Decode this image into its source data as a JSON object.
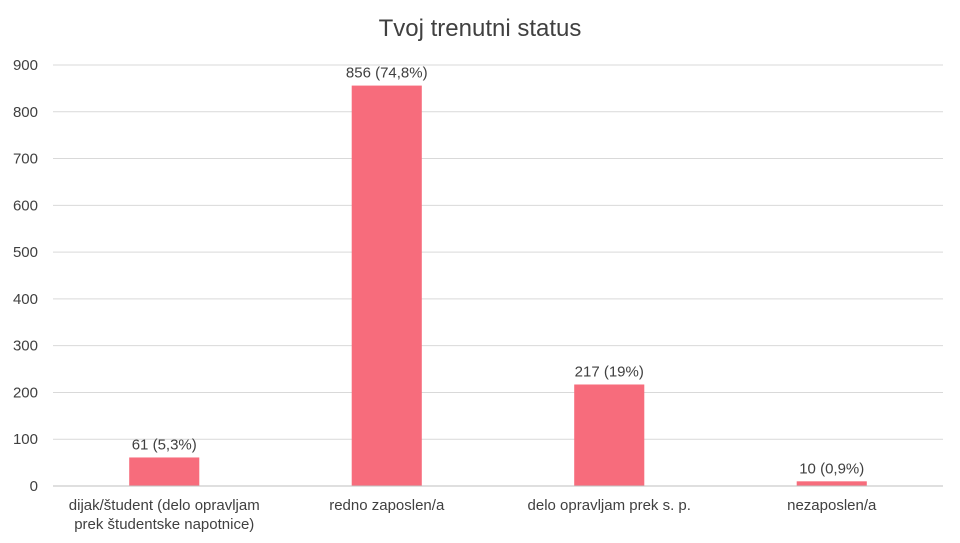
{
  "chart_data": {
    "type": "bar",
    "title": "Tvoj trenutni status",
    "xlabel": "",
    "ylabel": "",
    "ylim": [
      0,
      900
    ],
    "yticks": [
      0,
      100,
      200,
      300,
      400,
      500,
      600,
      700,
      800,
      900
    ],
    "grid": true,
    "bar_color": "#f76c7c",
    "categories": [
      [
        "dijak/študent (delo opravljam",
        "prek študentske napotnice)"
      ],
      [
        "redno zaposlen/a"
      ],
      [
        "delo opravljam prek s. p."
      ],
      [
        "nezaposlen/a"
      ]
    ],
    "values": [
      61,
      856,
      217,
      10
    ],
    "data_labels": [
      "61 (5,3%)",
      "856 (74,8%)",
      "217 (19%)",
      "10 (0,9%)"
    ]
  }
}
